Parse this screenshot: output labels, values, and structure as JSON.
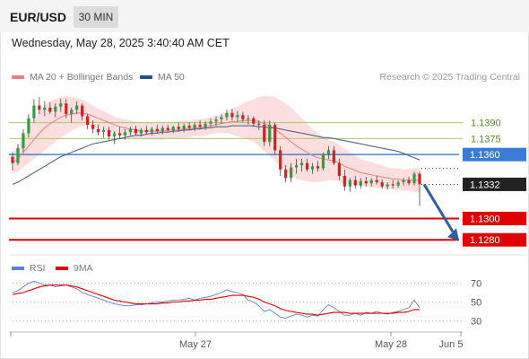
{
  "header": {
    "symbol": "EUR/USD",
    "timeframe_label": "30 MIN",
    "datetime": "Wednesday, May 28, 2025 3:40:40 AM CET"
  },
  "legend": {
    "items": [
      {
        "label": "MA 20 + Bollinger Bands",
        "color": "#f08080"
      },
      {
        "label": "MA 50",
        "color": "#1f4e8c"
      }
    ],
    "credit": "Research © 2025 Trading Central"
  },
  "chart_data": [
    {
      "type": "candlestick",
      "title": "",
      "ylim": [
        1.1265,
        1.1425
      ],
      "x_labels": [
        "May 27",
        "May 28",
        "Jun 5"
      ],
      "levels": [
        {
          "value": 1.139,
          "label": "1.1390",
          "kind": "resistance-minor",
          "color": "#a8c86a"
        },
        {
          "value": 1.1375,
          "label": "1.1375",
          "kind": "resistance-minor",
          "color": "#a8c86a"
        },
        {
          "value": 1.136,
          "label": "1.1360",
          "kind": "pivot",
          "color": "#3a7bd5"
        },
        {
          "value": 1.1332,
          "label": "1.1332",
          "kind": "last-price",
          "color": "#222222"
        },
        {
          "value": 1.13,
          "label": "1.1300",
          "kind": "support",
          "color": "#e00000"
        },
        {
          "value": 1.128,
          "label": "1.1280",
          "kind": "support",
          "color": "#e00000"
        }
      ],
      "forecast_arrow": {
        "from": 1.1332,
        "to": 1.128,
        "direction": "down",
        "color": "#2e5e9e"
      },
      "candles_ohlc": [
        [
          1.1358,
          1.1362,
          1.1345,
          1.1352
        ],
        [
          1.1352,
          1.137,
          1.135,
          1.1366
        ],
        [
          1.1366,
          1.1384,
          1.1362,
          1.138
        ],
        [
          1.138,
          1.1398,
          1.1376,
          1.1394
        ],
        [
          1.1394,
          1.1412,
          1.139,
          1.1406
        ],
        [
          1.1406,
          1.1414,
          1.1398,
          1.1402
        ],
        [
          1.1402,
          1.141,
          1.1396,
          1.1404
        ],
        [
          1.1404,
          1.1409,
          1.1398,
          1.14
        ],
        [
          1.14,
          1.1408,
          1.1395,
          1.1405
        ],
        [
          1.1405,
          1.1412,
          1.14,
          1.1408
        ],
        [
          1.1408,
          1.1412,
          1.1394,
          1.1398
        ],
        [
          1.1398,
          1.1404,
          1.139,
          1.1402
        ],
        [
          1.1402,
          1.141,
          1.1398,
          1.1406
        ],
        [
          1.1406,
          1.1408,
          1.1392,
          1.1396
        ],
        [
          1.1396,
          1.1398,
          1.1384,
          1.1388
        ],
        [
          1.1388,
          1.1392,
          1.138,
          1.1384
        ],
        [
          1.1384,
          1.1388,
          1.1378,
          1.1381
        ],
        [
          1.1381,
          1.1386,
          1.1376,
          1.1383
        ],
        [
          1.1383,
          1.1386,
          1.1374,
          1.1377
        ],
        [
          1.1377,
          1.1382,
          1.137,
          1.138
        ],
        [
          1.138,
          1.1386,
          1.1375,
          1.1378
        ],
        [
          1.1378,
          1.1384,
          1.1374,
          1.1381
        ],
        [
          1.1381,
          1.1386,
          1.1378,
          1.1384
        ],
        [
          1.1384,
          1.1387,
          1.1378,
          1.138
        ],
        [
          1.138,
          1.1385,
          1.1377,
          1.1383
        ],
        [
          1.1383,
          1.1387,
          1.1379,
          1.1381
        ],
        [
          1.1381,
          1.1386,
          1.1378,
          1.1384
        ],
        [
          1.1384,
          1.1388,
          1.138,
          1.1382
        ],
        [
          1.1382,
          1.1387,
          1.1379,
          1.1385
        ],
        [
          1.1385,
          1.1388,
          1.1381,
          1.1383
        ],
        [
          1.1383,
          1.1387,
          1.138,
          1.1386
        ],
        [
          1.1386,
          1.139,
          1.1382,
          1.1384
        ],
        [
          1.1384,
          1.1389,
          1.1381,
          1.1387
        ],
        [
          1.1387,
          1.139,
          1.1383,
          1.1385
        ],
        [
          1.1385,
          1.139,
          1.1382,
          1.1388
        ],
        [
          1.1388,
          1.1392,
          1.1384,
          1.1386
        ],
        [
          1.1386,
          1.1391,
          1.1383,
          1.1389
        ],
        [
          1.1389,
          1.1394,
          1.1386,
          1.1391
        ],
        [
          1.1391,
          1.1396,
          1.1387,
          1.1393
        ],
        [
          1.1393,
          1.1398,
          1.1389,
          1.1395
        ],
        [
          1.1395,
          1.1402,
          1.1392,
          1.1399
        ],
        [
          1.1399,
          1.1403,
          1.1392,
          1.1395
        ],
        [
          1.1395,
          1.1401,
          1.1391,
          1.1397
        ],
        [
          1.1397,
          1.14,
          1.139,
          1.1393
        ],
        [
          1.1393,
          1.1397,
          1.1388,
          1.1394
        ],
        [
          1.1394,
          1.1396,
          1.1386,
          1.1389
        ],
        [
          1.1389,
          1.1392,
          1.1383,
          1.1388
        ],
        [
          1.1388,
          1.1392,
          1.1368,
          1.1372
        ],
        [
          1.1372,
          1.1392,
          1.1368,
          1.1388
        ],
        [
          1.1388,
          1.139,
          1.136,
          1.1364
        ],
        [
          1.1364,
          1.1368,
          1.134,
          1.1346
        ],
        [
          1.1346,
          1.135,
          1.1334,
          1.1338
        ],
        [
          1.1338,
          1.1352,
          1.1334,
          1.1348
        ],
        [
          1.1348,
          1.1356,
          1.1342,
          1.135
        ],
        [
          1.135,
          1.1356,
          1.1344,
          1.1352
        ],
        [
          1.1352,
          1.1356,
          1.1344,
          1.1346
        ],
        [
          1.1346,
          1.1352,
          1.1342,
          1.1349
        ],
        [
          1.1349,
          1.1354,
          1.1344,
          1.1347
        ],
        [
          1.1347,
          1.1362,
          1.1345,
          1.136
        ],
        [
          1.136,
          1.1368,
          1.1356,
          1.1364
        ],
        [
          1.1364,
          1.1368,
          1.135,
          1.1352
        ],
        [
          1.1352,
          1.1356,
          1.1336,
          1.134
        ],
        [
          1.134,
          1.1346,
          1.1326,
          1.133
        ],
        [
          1.133,
          1.1338,
          1.1325,
          1.1336
        ],
        [
          1.1336,
          1.134,
          1.1328,
          1.1331
        ],
        [
          1.1331,
          1.1338,
          1.1328,
          1.1335
        ],
        [
          1.1335,
          1.1339,
          1.133,
          1.1333
        ],
        [
          1.1333,
          1.1338,
          1.133,
          1.1336
        ],
        [
          1.1336,
          1.134,
          1.1332,
          1.1334
        ],
        [
          1.1334,
          1.1337,
          1.1328,
          1.133
        ],
        [
          1.133,
          1.1334,
          1.1327,
          1.1332
        ],
        [
          1.1332,
          1.1336,
          1.1328,
          1.1331
        ],
        [
          1.1331,
          1.1336,
          1.1329,
          1.1334
        ],
        [
          1.1334,
          1.1338,
          1.1331,
          1.1336
        ],
        [
          1.1336,
          1.1339,
          1.1331,
          1.1333
        ],
        [
          1.1333,
          1.1344,
          1.1331,
          1.1342
        ],
        [
          1.1342,
          1.1344,
          1.1312,
          1.1332
        ]
      ],
      "ma20": [
        1.1352,
        1.1356,
        1.1362,
        1.1368,
        1.1374,
        1.138,
        1.1385,
        1.1389,
        1.1392,
        1.1395,
        1.1397,
        1.1398,
        1.1399,
        1.1399,
        1.1398,
        1.1396,
        1.1394,
        1.1392,
        1.139,
        1.1388,
        1.1386,
        1.1385,
        1.1384,
        1.1383,
        1.1382,
        1.1382,
        1.1382,
        1.1382,
        1.1382,
        1.1383,
        1.1383,
        1.1383,
        1.1384,
        1.1384,
        1.1385,
        1.1385,
        1.1386,
        1.1387,
        1.1388,
        1.1389,
        1.139,
        1.1391,
        1.1391,
        1.1392,
        1.1392,
        1.1392,
        1.1391,
        1.1389,
        1.1387,
        1.1384,
        1.138,
        1.1376,
        1.1372,
        1.1368,
        1.1365,
        1.1362,
        1.1359,
        1.1357,
        1.1356,
        1.1355,
        1.1354,
        1.1352,
        1.1349,
        1.1347,
        1.1345,
        1.1343,
        1.1342,
        1.1341,
        1.134,
        1.1339,
        1.1338,
        1.1337,
        1.1337,
        1.1336,
        1.1336,
        1.1336,
        1.1336
      ],
      "ma50": [
        1.1332,
        1.1334,
        1.1337,
        1.134,
        1.1343,
        1.1346,
        1.1349,
        1.1352,
        1.1355,
        1.1358,
        1.136,
        1.1362,
        1.1364,
        1.1366,
        1.1368,
        1.137,
        1.1371,
        1.1372,
        1.1373,
        1.1374,
        1.1375,
        1.1376,
        1.1377,
        1.1378,
        1.1378,
        1.1379,
        1.138,
        1.138,
        1.1381,
        1.1381,
        1.1382,
        1.1382,
        1.1383,
        1.1383,
        1.1384,
        1.1384,
        1.1385,
        1.1385,
        1.1386,
        1.1386,
        1.1386,
        1.1387,
        1.1387,
        1.1387,
        1.1387,
        1.1387,
        1.1386,
        1.1386,
        1.1385,
        1.1385,
        1.1384,
        1.1383,
        1.1382,
        1.1381,
        1.138,
        1.1379,
        1.1378,
        1.1377,
        1.1376,
        1.1376,
        1.1375,
        1.1374,
        1.1373,
        1.1372,
        1.1371,
        1.137,
        1.1369,
        1.1368,
        1.1367,
        1.1366,
        1.1365,
        1.1364,
        1.1363,
        1.1361,
        1.1359,
        1.1357,
        1.1355
      ],
      "bb_width": [
        0.001,
        0.0012,
        0.0014,
        0.0016,
        0.0018,
        0.002,
        0.0021,
        0.0021,
        0.002,
        0.0019,
        0.0018,
        0.0016,
        0.0014,
        0.0012,
        0.0011,
        0.001,
        0.0009,
        0.0009,
        0.0008,
        0.0008,
        0.0008,
        0.0008,
        0.0008,
        0.0008,
        0.0008,
        0.0008,
        0.0008,
        0.0008,
        0.0008,
        0.0008,
        0.0008,
        0.0008,
        0.0008,
        0.0008,
        0.0008,
        0.0008,
        0.0008,
        0.0008,
        0.0008,
        0.0009,
        0.001,
        0.0012,
        0.0014,
        0.0016,
        0.0018,
        0.002,
        0.0023,
        0.0026,
        0.0028,
        0.003,
        0.0031,
        0.0032,
        0.0032,
        0.0031,
        0.0029,
        0.0027,
        0.0025,
        0.0023,
        0.0021,
        0.0019,
        0.0018,
        0.0017,
        0.0016,
        0.0015,
        0.0014,
        0.0013,
        0.0012,
        0.0012,
        0.0011,
        0.0011,
        0.001,
        0.001,
        0.001,
        0.001,
        0.001,
        0.0011,
        0.0012
      ]
    },
    {
      "type": "line",
      "title": "",
      "ylim": [
        20,
        80
      ],
      "yticks": [
        70,
        50,
        30
      ],
      "series": [
        {
          "name": "RSI",
          "color": "#5b7fd8",
          "values": [
            60,
            62,
            66,
            70,
            72,
            70,
            68,
            68,
            66,
            67,
            68,
            66,
            64,
            60,
            58,
            56,
            54,
            52,
            50,
            48,
            47,
            46,
            46,
            47,
            47,
            48,
            49,
            50,
            50,
            51,
            52,
            52,
            53,
            54,
            52,
            54,
            55,
            56,
            58,
            60,
            63,
            61,
            60,
            58,
            52,
            50,
            46,
            40,
            42,
            38,
            34,
            33,
            35,
            37,
            36,
            34,
            36,
            35,
            42,
            47,
            44,
            40,
            36,
            36,
            38,
            36,
            39,
            38,
            40,
            38,
            37,
            39,
            40,
            42,
            44,
            52,
            44
          ]
        },
        {
          "name": "9MA",
          "color": "#e00000",
          "values": [
            58,
            59,
            60,
            62,
            64,
            66,
            67,
            68,
            68,
            68,
            68,
            67,
            66,
            64,
            62,
            60,
            58,
            56,
            54,
            52,
            51,
            50,
            49,
            48,
            48,
            48,
            48,
            48,
            49,
            49,
            50,
            50,
            51,
            51,
            52,
            52,
            53,
            53,
            54,
            55,
            56,
            57,
            57,
            57,
            56,
            55,
            53,
            50,
            48,
            46,
            43,
            41,
            40,
            39,
            38,
            37,
            37,
            36,
            37,
            38,
            39,
            39,
            39,
            38,
            38,
            38,
            38,
            38,
            38,
            38,
            38,
            38,
            39,
            39,
            40,
            42,
            42
          ]
        }
      ]
    }
  ]
}
